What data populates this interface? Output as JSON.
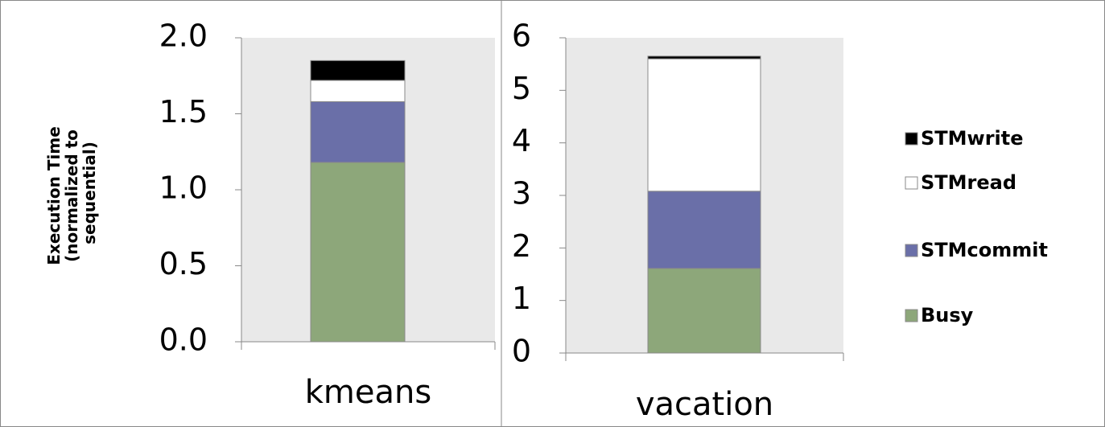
{
  "chart_data": [
    {
      "type": "bar",
      "stacked": true,
      "y_label": "Execution Time (normalized to sequential)",
      "categories": [
        "kmeans"
      ],
      "series": [
        {
          "color": "#8da77a",
          "values": [
            1.18
          ]
        },
        {
          "color": "#6a6fa8",
          "values": [
            0.4
          ]
        },
        {
          "color": "#ffffff",
          "values": [
            0.14
          ]
        },
        {
          "color": "#000000",
          "values": [
            0.13
          ]
        }
      ],
      "ylim": [
        0,
        2
      ],
      "yticks": [
        {
          "value": 0,
          "label": "0.0"
        },
        0.5,
        {
          "value": 1,
          "label": "1.0"
        },
        1.5,
        {
          "value": 2,
          "label": "2.0"
        }
      ]
    },
    {
      "type": "bar",
      "stacked": true,
      "categories": [
        "vacation"
      ],
      "series": [
        {
          "name": "Busy",
          "color": "#8da77a",
          "values": [
            1.61
          ]
        },
        {
          "name": "STMcommit",
          "color": "#6a6fa8",
          "values": [
            1.47
          ]
        },
        {
          "name": "STMread",
          "color": "#ffffff",
          "values": [
            2.52
          ]
        },
        {
          "name": "STMwrite",
          "color": "#000000",
          "values": [
            0.05
          ]
        }
      ],
      "ylim": [
        0,
        6
      ],
      "yticks": [
        0,
        1,
        2,
        3,
        4,
        5,
        6
      ]
    }
  ]
}
